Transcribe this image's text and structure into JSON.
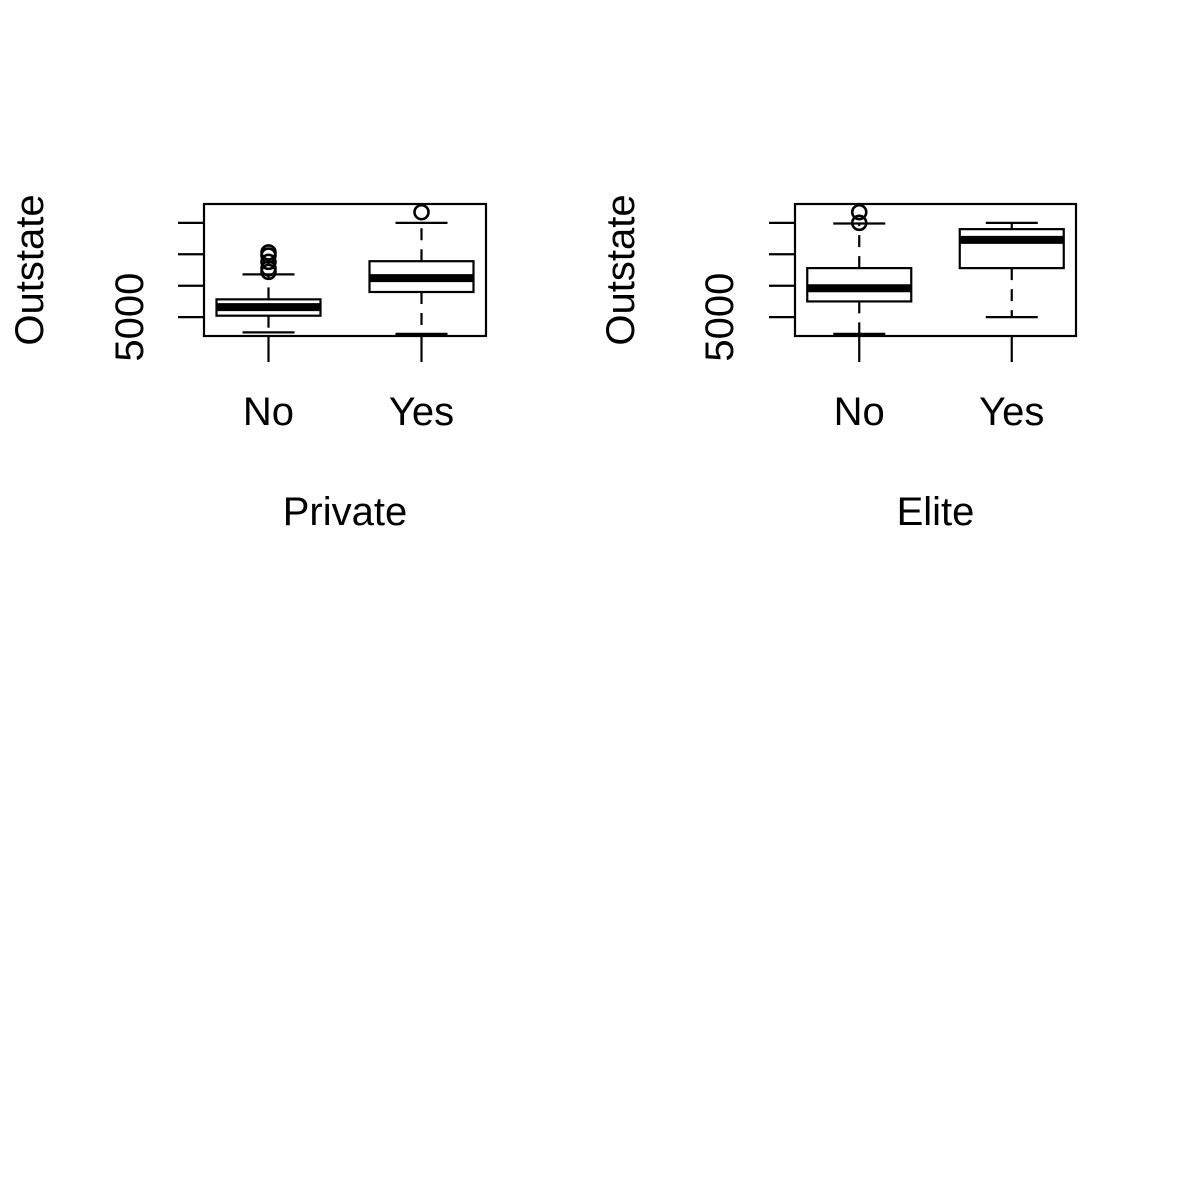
{
  "chart_data": [
    {
      "type": "boxplot",
      "xlabel": "Private",
      "ylabel": "Outstate",
      "categories": [
        "No",
        "Yes"
      ],
      "ylim": [
        2000,
        23000
      ],
      "yticks": [
        5000,
        10000,
        15000,
        20000
      ],
      "ytick_labels": [
        "5000",
        "",
        "",
        ""
      ],
      "grid": false,
      "boxes": [
        {
          "category": "No",
          "whisker_low": 2580,
          "q1": 5230,
          "median": 6600,
          "q3": 7830,
          "whisker_high": 11800,
          "outliers": [
            12200,
            12750,
            13800,
            14800,
            15300
          ]
        },
        {
          "category": "Yes",
          "whisker_low": 2340,
          "q1": 9000,
          "median": 11200,
          "q3": 13900,
          "whisker_high": 20000,
          "outliers": [
            21700
          ]
        }
      ]
    },
    {
      "type": "boxplot",
      "xlabel": "Elite",
      "ylabel": "Outstate",
      "categories": [
        "No",
        "Yes"
      ],
      "ylim": [
        2000,
        23000
      ],
      "yticks": [
        5000,
        10000,
        15000,
        20000
      ],
      "ytick_labels": [
        "5000",
        "",
        "",
        ""
      ],
      "grid": false,
      "boxes": [
        {
          "category": "No",
          "whisker_low": 2340,
          "q1": 7500,
          "median": 9600,
          "q3": 12800,
          "whisker_high": 19900,
          "outliers": [
            20000,
            21700
          ]
        },
        {
          "category": "Yes",
          "whisker_low": 5000,
          "q1": 12800,
          "median": 17300,
          "q3": 19000,
          "whisker_high": 20000,
          "outliers": []
        }
      ]
    }
  ]
}
